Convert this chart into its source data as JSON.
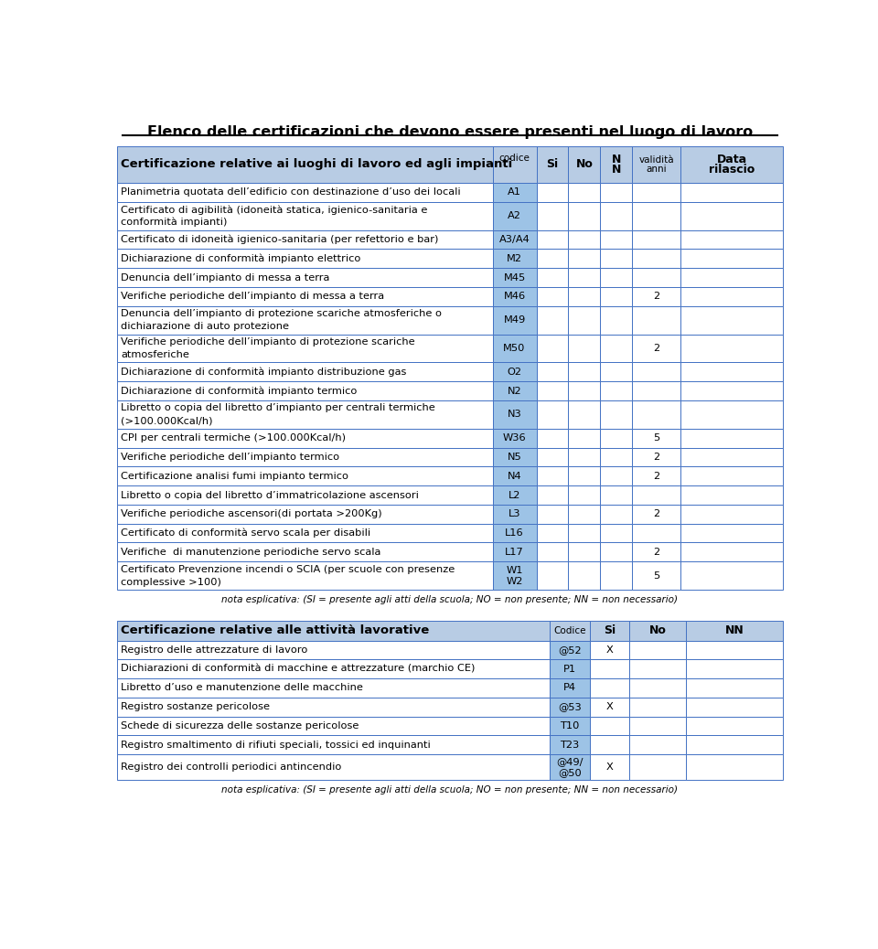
{
  "title": "Elenco delle certificazioni che devono essere presenti nel luogo di lavoro",
  "bg_color": "#ffffff",
  "header1_bg": "#b8cce4",
  "code_bg": "#9dc3e6",
  "row_bg_white": "#ffffff",
  "table1_rows": [
    {
      "desc": "Planimetria quotata dell’edificio con destinazione d’uso dei locali",
      "code": "A1",
      "val": ""
    },
    {
      "desc": "Certificato di agibilità (idoneità statica, igienico-sanitaria e\nconformità impianti)",
      "code": "A2",
      "val": ""
    },
    {
      "desc": "Certificato di idoneità igienico-sanitaria (per refettorio e bar)",
      "code": "A3/A4",
      "val": ""
    },
    {
      "desc": "Dichiarazione di conformità impianto elettrico",
      "code": "M2",
      "val": ""
    },
    {
      "desc": "Denuncia dell’impianto di messa a terra",
      "code": "M45",
      "val": ""
    },
    {
      "desc": "Verifiche periodiche dell’impianto di messa a terra",
      "code": "M46",
      "val": "2"
    },
    {
      "desc": "Denuncia dell’impianto di protezione scariche atmosferiche o\ndichiarazione di auto protezione",
      "code": "M49",
      "val": ""
    },
    {
      "desc": "Verifiche periodiche dell’impianto di protezione scariche\natmosferiche",
      "code": "M50",
      "val": "2"
    },
    {
      "desc": "Dichiarazione di conformità impianto distribuzione gas",
      "code": "O2",
      "val": ""
    },
    {
      "desc": "Dichiarazione di conformità impianto termico",
      "code": "N2",
      "val": ""
    },
    {
      "desc": "Libretto o copia del libretto d’impianto per centrali termiche\n(>100.000Kcal/h)",
      "code": "N3",
      "val": ""
    },
    {
      "desc": "CPI per centrali termiche (>100.000Kcal/h)",
      "code": "W36",
      "val": "5"
    },
    {
      "desc": "Verifiche periodiche dell’impianto termico",
      "code": "N5",
      "val": "2"
    },
    {
      "desc": "Certificazione analisi fumi impianto termico",
      "code": "N4",
      "val": "2"
    },
    {
      "desc": "Libretto o copia del libretto d’immatricolazione ascensori",
      "code": "L2",
      "val": ""
    },
    {
      "desc": "Verifiche periodiche ascensori(di portata >200Kg)",
      "code": "L3",
      "val": "2"
    },
    {
      "desc": "Certificato di conformità servo scala per disabili",
      "code": "L16",
      "val": ""
    },
    {
      "desc": "Verifiche  di manutenzione periodiche servo scala",
      "code": "L17",
      "val": "2"
    },
    {
      "desc": "Certificato Prevenzione incendi o SCIA (per scuole con presenze\ncomplessive >100)",
      "code": "W1\nW2",
      "val": "5"
    }
  ],
  "note1": "nota esplicativa: (SI = presente agli atti della scuola; NO = non presente; NN = non necessario)",
  "table2_rows": [
    {
      "desc": "Registro delle attrezzature di lavoro",
      "code": "@52",
      "si": "X"
    },
    {
      "desc": "Dichiarazioni di conformità di macchine e attrezzature (marchio CE)",
      "code": "P1",
      "si": ""
    },
    {
      "desc": "Libretto d’uso e manutenzione delle macchine",
      "code": "P4",
      "si": ""
    },
    {
      "desc": "Registro sostanze pericolose",
      "code": "@53",
      "si": "X"
    },
    {
      "desc": "Schede di sicurezza delle sostanze pericolose",
      "code": "T10",
      "si": ""
    },
    {
      "desc": "Registro smaltimento di rifiuti speciali, tossici ed inquinanti",
      "code": "T23",
      "si": ""
    },
    {
      "desc": "Registro dei controlli periodici antincendio",
      "code": "@49/\n@50",
      "si": "X"
    }
  ],
  "note2": "nota esplicativa: (SI = presente agli atti della scuola; NO = non presente; NN = non necessario)"
}
